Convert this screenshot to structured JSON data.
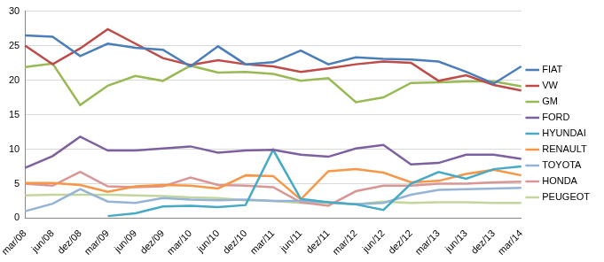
{
  "chart_data": {
    "type": "line",
    "categories": [
      "mar/08",
      "jun/08",
      "dez/08",
      "mar/09",
      "jun/09",
      "dez/09",
      "mar/10",
      "jun/10",
      "dez/10",
      "mar/11",
      "jun/11",
      "dez/11",
      "mar/12",
      "jun/12",
      "dez/12",
      "mar/13",
      "jun/13",
      "dez/13",
      "mar/14"
    ],
    "series": [
      {
        "name": "FIAT",
        "color": "#4a7ebb",
        "values": [
          26.5,
          26.3,
          23.5,
          25.3,
          24.7,
          24.4,
          22.0,
          24.9,
          22.3,
          22.6,
          24.3,
          22.3,
          23.3,
          23.1,
          23.0,
          22.7,
          21.2,
          19.5,
          22.0
        ]
      },
      {
        "name": "VW",
        "color": "#be4b48",
        "values": [
          25.0,
          22.3,
          24.6,
          27.4,
          25.3,
          23.2,
          22.2,
          22.9,
          22.3,
          22.0,
          21.2,
          21.7,
          22.3,
          22.7,
          22.5,
          19.9,
          20.7,
          19.3,
          18.5
        ]
      },
      {
        "name": "GM",
        "color": "#98b954",
        "values": [
          21.9,
          22.4,
          16.4,
          19.2,
          20.6,
          19.9,
          22.1,
          21.1,
          21.2,
          20.9,
          19.9,
          20.3,
          16.8,
          17.5,
          19.6,
          19.7,
          19.8,
          19.8,
          19.1
        ]
      },
      {
        "name": "FORD",
        "color": "#7d60a0",
        "values": [
          7.3,
          9.0,
          11.8,
          9.8,
          9.8,
          10.1,
          10.4,
          9.5,
          9.8,
          9.9,
          9.2,
          8.9,
          10.1,
          10.6,
          7.8,
          8.0,
          9.2,
          9.2,
          8.6
        ]
      },
      {
        "name": "HYUNDAI",
        "color": "#46aac5",
        "values": [
          null,
          null,
          null,
          0.3,
          0.7,
          1.7,
          1.8,
          1.6,
          1.9,
          9.9,
          2.8,
          2.3,
          2.0,
          1.2,
          5.0,
          6.7,
          5.7,
          7.1,
          7.5
        ]
      },
      {
        "name": "RENAULT",
        "color": "#f79646",
        "values": [
          5.1,
          5.1,
          4.8,
          3.8,
          4.6,
          4.8,
          4.7,
          4.3,
          6.2,
          6.1,
          2.7,
          6.8,
          7.1,
          6.6,
          5.2,
          5.4,
          6.4,
          7.0,
          6.2
        ]
      },
      {
        "name": "TOYOTA",
        "color": "#95b3d7",
        "values": [
          1.0,
          2.1,
          4.2,
          2.4,
          2.2,
          2.9,
          2.7,
          2.6,
          2.7,
          2.5,
          2.5,
          2.3,
          2.0,
          2.2,
          3.4,
          4.1,
          4.2,
          4.3,
          4.4
        ]
      },
      {
        "name": "HONDA",
        "color": "#d99694",
        "values": [
          5.0,
          4.7,
          6.7,
          4.6,
          4.5,
          4.6,
          5.9,
          4.8,
          4.7,
          4.5,
          2.3,
          1.8,
          3.9,
          4.7,
          4.7,
          5.0,
          5.0,
          5.2,
          5.3
        ]
      },
      {
        "name": "PEUGEOT",
        "color": "#c3d69b",
        "values": [
          3.3,
          3.4,
          3.4,
          3.4,
          3.3,
          3.2,
          3.0,
          2.9,
          2.6,
          2.5,
          2.2,
          2.2,
          2.0,
          2.4,
          2.2,
          2.3,
          2.3,
          2.2,
          2.2
        ]
      }
    ],
    "ylim": [
      0,
      30
    ],
    "yticks": [
      0,
      5,
      10,
      15,
      20,
      25,
      30
    ],
    "grid": true,
    "legend": "right"
  }
}
